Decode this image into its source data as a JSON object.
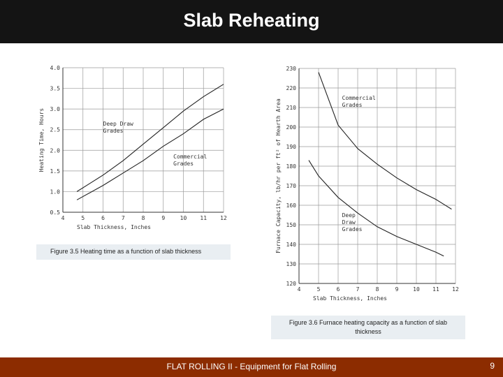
{
  "title": "Slab Reheating",
  "captions": {
    "fig35": "Figure 3.5 Heating time as a function of slab thickness",
    "fig36": "Figure 3.6 Furnace heating capacity as a function of slab thickness"
  },
  "footer": {
    "text": "FLAT ROLLING II - Equipment for Flat Rolling",
    "page": "9"
  },
  "chart_data": [
    {
      "type": "line",
      "xlabel": "Slab Thickness, Inches",
      "ylabel": "Heating Time, Hours",
      "xlim": [
        4,
        12
      ],
      "ylim": [
        0.5,
        4.0
      ],
      "xticks": [
        "4",
        "5",
        "6",
        "7",
        "8",
        "9",
        "10",
        "11",
        "12"
      ],
      "yticks": [
        "0.5",
        "1.0",
        "1.5",
        "2.0",
        "2.5",
        "3.0",
        "3.5",
        "4.0"
      ],
      "grid": true,
      "series": [
        {
          "name": "Deep Draw Grades",
          "x": [
            4.7,
            6,
            7,
            8,
            9,
            10,
            11,
            12
          ],
          "y": [
            1.0,
            1.4,
            1.75,
            2.15,
            2.55,
            2.95,
            3.3,
            3.6
          ]
        },
        {
          "name": "Commercial Grades",
          "x": [
            4.7,
            6,
            7,
            8,
            9,
            10,
            11,
            12
          ],
          "y": [
            0.8,
            1.15,
            1.45,
            1.75,
            2.1,
            2.4,
            2.75,
            3.0
          ]
        }
      ],
      "annotations": [
        {
          "lines": [
            "Deep  Draw",
            "Grades"
          ],
          "x": 6.0,
          "y": 2.6
        },
        {
          "lines": [
            "Commercial",
            "Grades"
          ],
          "x": 9.5,
          "y": 1.8
        }
      ]
    },
    {
      "type": "line",
      "xlabel": "Slab Thickness, Inches",
      "ylabel": "Furnace Capacity, lb/hr per ft² of Hearth Area",
      "xlim": [
        4,
        12
      ],
      "ylim": [
        120,
        230
      ],
      "xticks": [
        "4",
        "5",
        "6",
        "7",
        "8",
        "9",
        "10",
        "11",
        "12"
      ],
      "yticks": [
        "120",
        "130",
        "140",
        "150",
        "160",
        "170",
        "180",
        "190",
        "200",
        "210",
        "220",
        "230"
      ],
      "grid": true,
      "series": [
        {
          "name": "Commercial Grades",
          "x": [
            5,
            6,
            7,
            8,
            9,
            10,
            11,
            11.8
          ],
          "y": [
            228,
            201,
            189,
            181,
            174,
            168,
            163,
            158
          ]
        },
        {
          "name": "Deep Draw Grades",
          "x": [
            4.5,
            5,
            6,
            7,
            8,
            9,
            10,
            11,
            11.4
          ],
          "y": [
            183,
            175,
            164,
            156,
            149,
            144,
            140,
            136,
            134
          ]
        }
      ],
      "annotations": [
        {
          "lines": [
            "Commercial",
            "Grades"
          ],
          "x": 6.2,
          "y": 214
        },
        {
          "lines": [
            "Deep",
            "Draw",
            "Grades"
          ],
          "x": 6.2,
          "y": 154
        }
      ]
    }
  ]
}
